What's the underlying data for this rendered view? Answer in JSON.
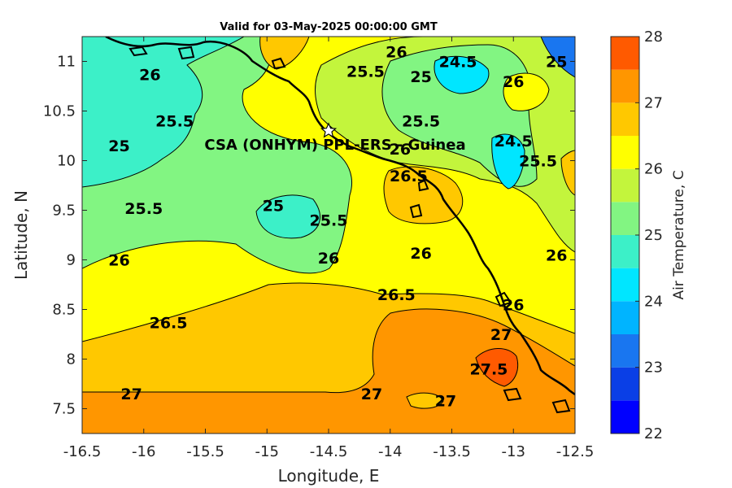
{
  "chart_data": {
    "type": "heatmap",
    "title": "Valid for 03-May-2025 00:00:00 GMT",
    "xlabel": "Longitude, E",
    "ylabel": "Latitude, N",
    "xlim": [
      -16.5,
      -12.5
    ],
    "ylim": [
      7.25,
      11.25
    ],
    "x_ticks": [
      "-16.5",
      "-16",
      "-15.5",
      "-15",
      "-14.5",
      "-14",
      "-13.5",
      "-13",
      "-12.5"
    ],
    "y_ticks": [
      "11",
      "10.5",
      "10",
      "9.5",
      "9",
      "8.5",
      "8",
      "7.5"
    ],
    "colorbar": {
      "label": "Air Temperature, C",
      "range": [
        22,
        28
      ],
      "step": 0.5,
      "ticks": [
        "22",
        "23",
        "24",
        "25",
        "26",
        "27",
        "28"
      ],
      "colors": [
        "#0000ff",
        "#0a3fe6",
        "#1976f0",
        "#00b4ff",
        "#00e6ff",
        "#3cf0c8",
        "#82f582",
        "#c3f53c",
        "#ffff00",
        "#ffc800",
        "#ff9600",
        "#ff5a00"
      ]
    },
    "contour_labels": [
      {
        "text": "26",
        "x": -15.95,
        "y": 10.87
      },
      {
        "text": "25.5",
        "x": -15.75,
        "y": 10.4
      },
      {
        "text": "25",
        "x": -16.2,
        "y": 10.15
      },
      {
        "text": "25.5",
        "x": -16.0,
        "y": 9.52
      },
      {
        "text": "25",
        "x": -14.95,
        "y": 9.55
      },
      {
        "text": "25.5",
        "x": -14.5,
        "y": 9.4
      },
      {
        "text": "26",
        "x": -14.5,
        "y": 9.02
      },
      {
        "text": "26",
        "x": -16.2,
        "y": 9.0
      },
      {
        "text": "26",
        "x": -13.75,
        "y": 9.07
      },
      {
        "text": "26.5",
        "x": -13.95,
        "y": 8.65
      },
      {
        "text": "26.5",
        "x": -15.8,
        "y": 8.37
      },
      {
        "text": "27",
        "x": -16.1,
        "y": 7.65
      },
      {
        "text": "27",
        "x": -14.15,
        "y": 7.65
      },
      {
        "text": "27",
        "x": -13.55,
        "y": 7.58
      },
      {
        "text": "27.5",
        "x": -13.2,
        "y": 7.9
      },
      {
        "text": "27",
        "x": -13.1,
        "y": 8.25
      },
      {
        "text": "26",
        "x": -13.0,
        "y": 8.55
      },
      {
        "text": "26.5",
        "x": -13.85,
        "y": 9.85
      },
      {
        "text": "26",
        "x": -13.92,
        "y": 10.12
      },
      {
        "text": "25.5",
        "x": -13.75,
        "y": 10.4
      },
      {
        "text": "25.5",
        "x": -14.2,
        "y": 10.9
      },
      {
        "text": "26",
        "x": -13.95,
        "y": 11.1
      },
      {
        "text": "25",
        "x": -13.75,
        "y": 10.85
      },
      {
        "text": "24.5",
        "x": -13.45,
        "y": 11.0
      },
      {
        "text": "25",
        "x": -12.65,
        "y": 11.0
      },
      {
        "text": "26",
        "x": -13.0,
        "y": 10.8
      },
      {
        "text": "24.5",
        "x": -13.0,
        "y": 10.2
      },
      {
        "text": "25.5",
        "x": -12.8,
        "y": 10.0
      },
      {
        "text": "26",
        "x": -12.65,
        "y": 9.05
      }
    ],
    "station": {
      "label": "CSA (ONHYM) PPL-ERS  - Guinea",
      "x": -14.5,
      "y": 10.3
    },
    "grid": false
  }
}
